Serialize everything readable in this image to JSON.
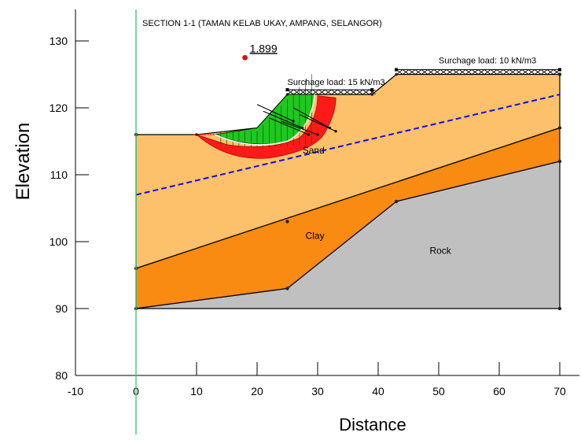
{
  "chart_data": {
    "type": "diagram",
    "title": "SECTION 1-1 (TAMAN KELAB UKAY, AMPANG, SELANGOR)",
    "xlabel": "Distance",
    "ylabel": "Elevation",
    "xlim": [
      -10,
      70
    ],
    "ylim": [
      80,
      130
    ],
    "x_ticks": [
      -10,
      0,
      10,
      20,
      30,
      40,
      50,
      60,
      70
    ],
    "y_ticks": [
      80,
      90,
      100,
      110,
      120,
      130
    ],
    "factor_of_safety": {
      "label": "1.899",
      "center": [
        18,
        127.5
      ]
    },
    "surcharges": [
      {
        "label": "Surchage load: 15 kN/m3",
        "from": [
          25,
          122
        ],
        "to": [
          39,
          122
        ]
      },
      {
        "label": "Surchage load: 10 kN/m3",
        "from": [
          43,
          125
        ],
        "to": [
          70,
          125
        ]
      }
    ],
    "layers": [
      {
        "name": "Sand",
        "color": "#fcc16a",
        "label_at": [
          55,
          112.5
        ],
        "polygon": [
          [
            0,
            116
          ],
          [
            10,
            116
          ],
          [
            20,
            117
          ],
          [
            25,
            122
          ],
          [
            39,
            122
          ],
          [
            43,
            125
          ],
          [
            70,
            125
          ],
          [
            70,
            117
          ],
          [
            0,
            96
          ]
        ]
      },
      {
        "name": "Clay",
        "color": "#f98a12",
        "label_at": [
          36,
          99.5
        ],
        "polygon": [
          [
            0,
            96
          ],
          [
            70,
            117
          ],
          [
            70,
            112
          ],
          [
            43,
            106
          ],
          [
            25,
            93
          ],
          [
            0,
            90
          ]
        ]
      },
      {
        "name": "Rock",
        "color": "#c0c0c0",
        "label_at": [
          50,
          98.5
        ],
        "polygon": [
          [
            0,
            90
          ],
          [
            25,
            93
          ],
          [
            43,
            106
          ],
          [
            70,
            112
          ],
          [
            70,
            90
          ]
        ]
      }
    ],
    "layer_points": [
      [
        0,
        116
      ],
      [
        0,
        96
      ],
      [
        0,
        90
      ],
      [
        25,
        103
      ],
      [
        25,
        93
      ],
      [
        43,
        106
      ],
      [
        70,
        125
      ],
      [
        70,
        117
      ],
      [
        70,
        112
      ],
      [
        70,
        90
      ]
    ],
    "piezometric_line": {
      "color": "#1010d0",
      "from": [
        0,
        107
      ],
      "to": [
        70,
        122
      ]
    },
    "slip_surface": {
      "critical_fill": "#ff1a1a",
      "sliding_mass_fill": "#1fc81f",
      "entry": [
        10,
        116
      ],
      "exit": [
        33,
        121
      ]
    },
    "colors": {
      "axis": "#000000",
      "vertical_reference": "#2ecc71",
      "fos_marker": "#e01010",
      "surcharge": "#000000",
      "outline": "#000000"
    }
  }
}
